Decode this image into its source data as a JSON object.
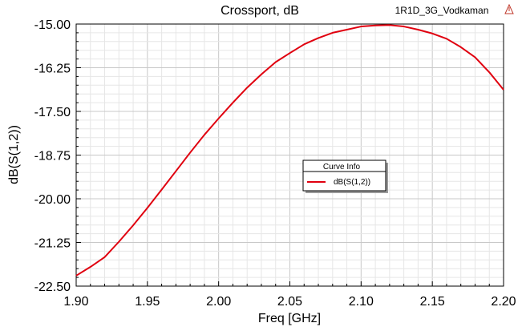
{
  "header": {
    "design_name": "1R1D_3G_Vodkaman",
    "logo_icon": "ansys-triangle-icon"
  },
  "legend": {
    "title": "Curve Info",
    "placement": "center-right"
  },
  "chart_data": {
    "type": "line",
    "title": "Crossport, dB",
    "xlabel": "Freq [GHz]",
    "ylabel": "dB(S(1,2))",
    "xlim": [
      1.9,
      2.2
    ],
    "ylim": [
      -22.5,
      -15.0
    ],
    "x_ticks": [
      "1.90",
      "1.95",
      "2.00",
      "2.05",
      "2.10",
      "2.15",
      "2.20"
    ],
    "y_ticks": [
      "-15.00",
      "-16.25",
      "-17.50",
      "-18.75",
      "-20.00",
      "-21.25",
      "-22.50"
    ],
    "grid": true,
    "series": [
      {
        "name": "dB(S(1,2))",
        "color": "#e0000f",
        "x": [
          1.9,
          1.91,
          1.92,
          1.93,
          1.94,
          1.95,
          1.96,
          1.97,
          1.98,
          1.99,
          2.0,
          2.01,
          2.02,
          2.03,
          2.04,
          2.05,
          2.06,
          2.07,
          2.08,
          2.09,
          2.1,
          2.11,
          2.12,
          2.13,
          2.14,
          2.15,
          2.16,
          2.17,
          2.18,
          2.19,
          2.2
        ],
        "y": [
          -22.2,
          -21.95,
          -21.67,
          -21.23,
          -20.76,
          -20.26,
          -19.74,
          -19.21,
          -18.68,
          -18.17,
          -17.7,
          -17.25,
          -16.82,
          -16.44,
          -16.09,
          -15.83,
          -15.58,
          -15.4,
          -15.25,
          -15.16,
          -15.07,
          -15.04,
          -15.03,
          -15.07,
          -15.16,
          -15.27,
          -15.42,
          -15.66,
          -15.95,
          -16.38,
          -16.88
        ]
      }
    ]
  }
}
